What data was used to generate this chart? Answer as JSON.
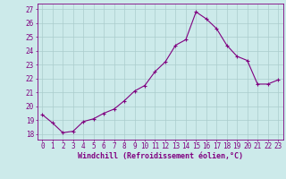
{
  "hours": [
    0,
    1,
    2,
    3,
    4,
    5,
    6,
    7,
    8,
    9,
    10,
    11,
    12,
    13,
    14,
    15,
    16,
    17,
    18,
    19,
    20,
    21,
    22,
    23
  ],
  "values": [
    19.4,
    18.8,
    18.1,
    18.2,
    18.9,
    19.1,
    19.5,
    19.8,
    20.4,
    21.1,
    21.5,
    22.5,
    23.2,
    24.4,
    24.8,
    26.8,
    26.3,
    25.6,
    24.4,
    23.6,
    23.3,
    21.6,
    21.6,
    21.9
  ],
  "line_color": "#800080",
  "marker": "+",
  "marker_size": 3,
  "marker_linewidth": 0.8,
  "line_width": 0.8,
  "bg_color": "#cceaea",
  "grid_color": "#aacccc",
  "xlabel": "Windchill (Refroidissement éolien,°C)",
  "ylabel_ticks": [
    18,
    19,
    20,
    21,
    22,
    23,
    24,
    25,
    26,
    27
  ],
  "ylim": [
    17.6,
    27.4
  ],
  "xlim": [
    -0.5,
    23.5
  ],
  "tick_fontsize": 5.5,
  "xlabel_fontsize": 6.0
}
